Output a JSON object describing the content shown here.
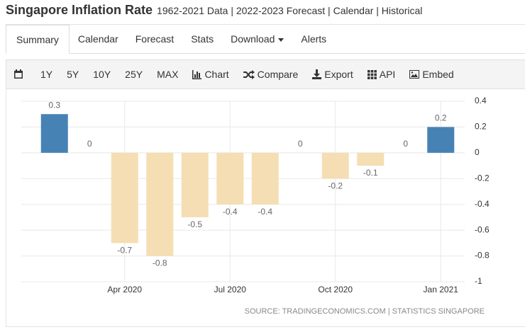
{
  "header": {
    "title": "Singapore Inflation Rate",
    "subtitle": "1962-2021 Data | 2022-2023 Forecast | Calendar | Historical"
  },
  "tabs": [
    "Summary",
    "Calendar",
    "Forecast",
    "Stats",
    "Download",
    "Alerts"
  ],
  "toolbar": [
    "1Y",
    "5Y",
    "10Y",
    "25Y",
    "MAX",
    "Chart",
    "Compare",
    "Export",
    "API",
    "Embed"
  ],
  "chart_data": {
    "type": "bar",
    "categories": [
      null,
      null,
      "Apr 2020",
      null,
      null,
      "Jul 2020",
      null,
      null,
      "Oct 2020",
      null,
      null,
      "Jan 2021"
    ],
    "values": [
      0.3,
      0,
      -0.7,
      -0.8,
      -0.5,
      -0.4,
      -0.4,
      0,
      -0.2,
      -0.1,
      0,
      0.2
    ],
    "colors": {
      "positive": "#4682b4",
      "negative": "#f5deb3"
    },
    "ylim": [
      -1,
      0.4
    ],
    "yticks": [
      0.4,
      0.2,
      0,
      -0.2,
      -0.4,
      -0.6,
      -0.8,
      -1
    ],
    "y_axis_side": "right",
    "grid": true,
    "source": "SOURCE: TRADINGECONOMICS.COM | STATISTICS SINGAPORE"
  }
}
